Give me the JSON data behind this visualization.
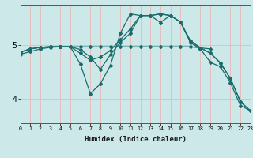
{
  "xlabel": "Humidex (Indice chaleur)",
  "bg_color": "#cde8e8",
  "vgrid_color": "#e8b8b8",
  "hgrid_color": "#e8b8b8",
  "line_color": "#1a6b6a",
  "x_ticks": [
    0,
    1,
    2,
    3,
    4,
    5,
    6,
    7,
    8,
    9,
    10,
    11,
    12,
    13,
    14,
    15,
    16,
    17,
    18,
    19,
    20,
    21,
    22,
    23
  ],
  "y_ticks": [
    4,
    5
  ],
  "ylim": [
    3.55,
    5.75
  ],
  "xlim": [
    0,
    23
  ],
  "lines": [
    {
      "x": [
        0,
        1,
        2,
        3,
        4,
        5,
        6,
        7,
        8,
        9,
        10,
        11,
        12,
        13,
        14,
        15,
        16,
        17,
        18,
        19
      ],
      "y": [
        4.87,
        4.93,
        4.96,
        4.97,
        4.97,
        4.97,
        4.97,
        4.97,
        4.97,
        4.97,
        4.97,
        4.97,
        4.97,
        4.97,
        4.97,
        4.97,
        4.97,
        4.97,
        4.95,
        4.93
      ]
    },
    {
      "x": [
        0,
        1,
        2,
        3,
        4,
        5,
        6,
        7,
        8,
        9,
        10,
        11,
        12,
        13,
        14,
        15,
        16,
        17,
        18,
        19,
        20,
        21,
        22,
        23
      ],
      "y": [
        4.87,
        4.93,
        4.96,
        4.97,
        4.97,
        4.97,
        4.65,
        4.1,
        4.28,
        4.62,
        5.22,
        5.58,
        5.55,
        5.55,
        5.42,
        5.55,
        5.43,
        5.05,
        4.93,
        4.68,
        4.6,
        4.3,
        3.88,
        3.78
      ]
    },
    {
      "x": [
        0,
        1,
        2,
        3,
        4,
        5,
        6,
        7,
        8,
        9,
        10,
        11,
        12,
        13,
        14,
        15,
        16,
        17,
        18,
        19,
        20,
        21,
        22,
        23
      ],
      "y": [
        4.87,
        4.93,
        4.96,
        4.97,
        4.97,
        4.97,
        4.85,
        4.72,
        4.78,
        4.9,
        5.1,
        5.3,
        5.55,
        5.55,
        5.58,
        5.55,
        5.43,
        5.08,
        4.95,
        4.85,
        4.67,
        4.38,
        3.95,
        3.78
      ]
    },
    {
      "x": [
        0,
        1,
        2,
        3,
        4,
        5,
        6,
        7,
        8,
        9,
        10,
        11,
        12,
        13,
        14,
        15,
        16,
        17,
        18,
        19,
        20,
        21,
        22,
        23
      ],
      "y": [
        4.83,
        4.88,
        4.93,
        4.96,
        4.97,
        4.97,
        4.92,
        4.78,
        4.55,
        4.82,
        5.05,
        5.22,
        5.55,
        5.55,
        5.58,
        5.55,
        5.43,
        5.08,
        4.95,
        4.85,
        4.67,
        4.38,
        3.95,
        3.78
      ]
    }
  ]
}
